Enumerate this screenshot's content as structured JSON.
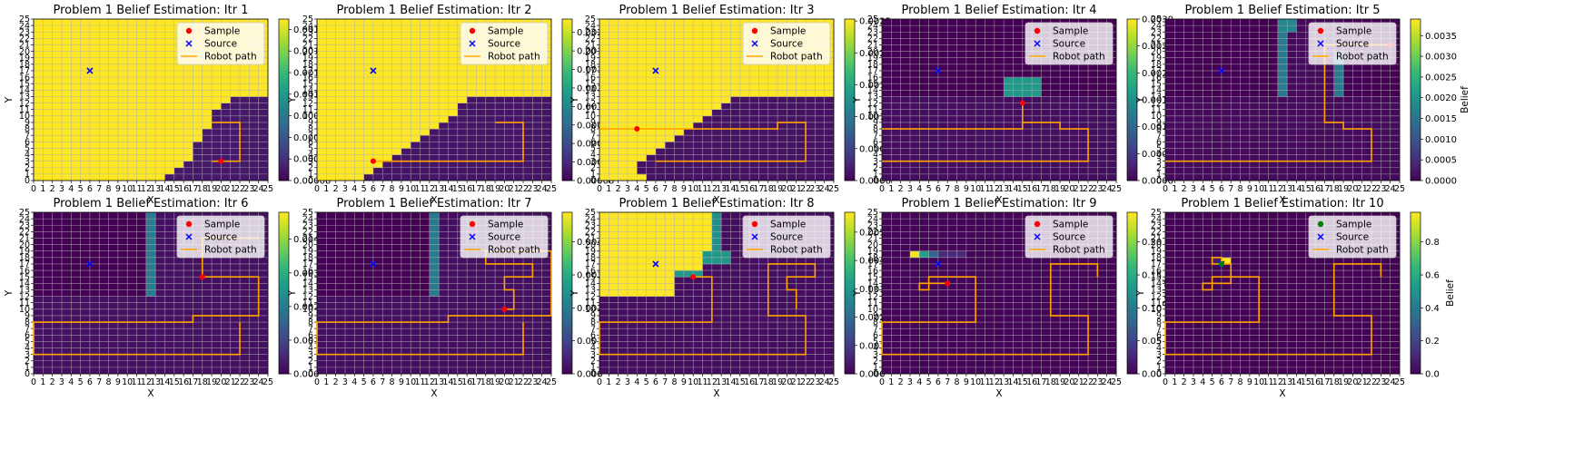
{
  "figure": {
    "panels": [
      {
        "title": "Problem 1 Belief Estimation: Itr 1"
      },
      {
        "title": "Problem 1 Belief Estimation: Itr 2"
      },
      {
        "title": "Problem 1 Belief Estimation: Itr 3"
      },
      {
        "title": "Problem 1 Belief Estimation: Itr 4"
      },
      {
        "title": "Problem 1 Belief Estimation: Itr 5"
      },
      {
        "title": "Problem 1 Belief Estimation: Itr 6"
      },
      {
        "title": "Problem 1 Belief Estimation: Itr 7"
      },
      {
        "title": "Problem 1 Belief Estimation: Itr 8"
      },
      {
        "title": "Problem 1 Belief Estimation: Itr 9"
      },
      {
        "title": "Problem 1 Belief Estimation: Itr 10"
      }
    ],
    "xlabel": "X",
    "ylabel": "Y",
    "colorbar_label": "Belief",
    "legend": {
      "sample": "Sample",
      "source": "Source",
      "path": "Robot path"
    },
    "x_ticks": [
      "0",
      "1",
      "2",
      "3",
      "4",
      "5",
      "6",
      "7",
      "8",
      "9",
      "10",
      "11",
      "12",
      "13",
      "14",
      "15",
      "16",
      "17",
      "18",
      "19",
      "20",
      "21",
      "22",
      "23",
      "24",
      "25"
    ],
    "y_ticks": [
      "0",
      "1",
      "2",
      "3",
      "4",
      "5",
      "6",
      "7",
      "8",
      "9",
      "10",
      "11",
      "12",
      "13",
      "14",
      "15",
      "16",
      "17",
      "18",
      "19",
      "20",
      "21",
      "22",
      "23",
      "24",
      "25"
    ]
  },
  "colors": {
    "viridis": [
      "#440154",
      "#482878",
      "#3e4989",
      "#31688e",
      "#26828e",
      "#1f9e89",
      "#35b779",
      "#6ece58",
      "#b5de2b",
      "#fde725"
    ],
    "sample": "#ff0000",
    "sample_found": "#008000",
    "source": "#0000ff",
    "path": "#ffa500",
    "grid": "#b0b0b0"
  },
  "chart_data": [
    {
      "type": "heatmap",
      "iteration": 1,
      "source": [
        6,
        17
      ],
      "sample": [
        20,
        3
      ],
      "sample_color": "red",
      "cmax": 0.00187,
      "cbar_ticks": [
        "0.00000",
        "0.00025",
        "0.00050",
        "0.00075",
        "0.00100",
        "0.00125",
        "0.00150",
        "0.00175"
      ],
      "path": [
        [
          19,
          3
        ],
        [
          22,
          3
        ],
        [
          22,
          9
        ],
        [
          19,
          9
        ]
      ],
      "regions": [
        {
          "type": "bounds",
          "xs": [
            14,
            15,
            16,
            17,
            17,
            17,
            18,
            18,
            19,
            19,
            19,
            20,
            21
          ],
          "y0": 0,
          "y1": 13,
          "base": 0.00187,
          "inside": 0.00012
        }
      ]
    },
    {
      "type": "heatmap",
      "iteration": 2,
      "source": [
        6,
        17
      ],
      "sample": [
        6,
        3
      ],
      "sample_color": "red",
      "cmax": 0.00218,
      "cbar_ticks": [
        "0.00000",
        "0.00025",
        "0.00050",
        "0.00075",
        "0.00100",
        "0.00125",
        "0.00150",
        "0.00175",
        "0.00200"
      ],
      "path": [
        [
          19,
          9
        ],
        [
          22,
          9
        ],
        [
          22,
          3
        ],
        [
          6,
          3
        ]
      ],
      "regions": [
        {
          "type": "bounds",
          "xs": [
            5,
            6,
            7,
            8,
            9,
            10,
            11,
            12,
            13,
            14,
            15,
            15,
            16,
            17,
            17,
            17,
            18,
            18,
            19,
            19,
            19,
            20,
            21
          ],
          "y0": 0,
          "y1": 13,
          "base": 0.00218,
          "inside": 0.00012
        }
      ]
    },
    {
      "type": "heatmap",
      "iteration": 3,
      "source": [
        6,
        17
      ],
      "sample": [
        4,
        8
      ],
      "sample_color": "red",
      "cmax": 0.00253,
      "cbar_ticks": [
        "0.0000",
        "0.0005",
        "0.0010",
        "0.0015",
        "0.0020",
        "0.0025"
      ],
      "path": [
        [
          6,
          3
        ],
        [
          22,
          3
        ],
        [
          22,
          9
        ],
        [
          19,
          9
        ],
        [
          19,
          8
        ],
        [
          0,
          8
        ]
      ],
      "regions": [
        {
          "type": "bounds",
          "xs": [
            5,
            4,
            4,
            5,
            6,
            7,
            8,
            9,
            10,
            11,
            12,
            13,
            14,
            15,
            15,
            16,
            17,
            17,
            17,
            18,
            18,
            19,
            19,
            19,
            20,
            21
          ],
          "y0": 0,
          "y1": 13,
          "base": 0.00253,
          "inside": 0.00012
        }
      ]
    },
    {
      "type": "heatmap",
      "iteration": 4,
      "source": [
        6,
        17
      ],
      "sample": [
        15,
        12
      ],
      "sample_color": "red",
      "cmax": 0.003,
      "cbar_ticks": [
        "0.0000",
        "0.0005",
        "0.0010",
        "0.0015",
        "0.0020",
        "0.0025",
        "0.0030"
      ],
      "path": [
        [
          0,
          8
        ],
        [
          15,
          8
        ],
        [
          15,
          12
        ],
        [
          15,
          9
        ],
        [
          19,
          9
        ],
        [
          19,
          8
        ],
        [
          22,
          8
        ],
        [
          22,
          3
        ],
        [
          0,
          3
        ]
      ],
      "regions": [
        {
          "type": "rect",
          "x0": 0,
          "x1": 25,
          "y0": 0,
          "y1": 13,
          "v": 0.0001
        },
        {
          "type": "rect",
          "x0": 13,
          "x1": 17,
          "y0": 13,
          "y1": 16,
          "v": 0.0016
        }
      ]
    },
    {
      "type": "heatmap",
      "iteration": 5,
      "source": [
        6,
        17
      ],
      "sample": [
        24,
        21
      ],
      "sample_color": "red",
      "cmax": 0.0039,
      "cbar_ticks": [
        "0.0000",
        "0.0005",
        "0.0010",
        "0.0015",
        "0.0020",
        "0.0025",
        "0.0030",
        "0.0035"
      ],
      "path": [
        [
          0,
          3
        ],
        [
          22,
          3
        ],
        [
          22,
          8
        ],
        [
          19,
          8
        ],
        [
          19,
          9
        ],
        [
          17,
          9
        ],
        [
          17,
          21
        ],
        [
          24,
          21
        ]
      ],
      "regions": [
        {
          "type": "rect",
          "x0": 0,
          "x1": 25,
          "y0": 0,
          "y1": 13,
          "v": 0.0001
        },
        {
          "type": "rect",
          "x0": 12,
          "x1": 19,
          "y0": 13,
          "y1": 25,
          "v": 0.0001
        },
        {
          "type": "rect",
          "x0": 12,
          "x1": 13,
          "y0": 13,
          "y1": 25,
          "v": 0.0016
        },
        {
          "type": "rect",
          "x0": 18,
          "x1": 19,
          "y0": 13,
          "y1": 20,
          "v": 0.0016
        },
        {
          "type": "rect",
          "x0": 12,
          "x1": 14,
          "y0": 23,
          "y1": 25,
          "v": 0.0018
        }
      ]
    },
    {
      "type": "heatmap",
      "iteration": 6,
      "source": [
        6,
        17
      ],
      "sample": [
        18,
        15
      ],
      "sample_color": "red",
      "cmax": 0.0048,
      "cbar_ticks": [
        "0.000",
        "0.001",
        "0.002",
        "0.003",
        "0.004"
      ],
      "path": [
        [
          24,
          21
        ],
        [
          18,
          21
        ],
        [
          18,
          15
        ],
        [
          24,
          15
        ],
        [
          24,
          9
        ],
        [
          17,
          9
        ],
        [
          17,
          8
        ],
        [
          0,
          8
        ],
        [
          0,
          3
        ],
        [
          22,
          3
        ],
        [
          22,
          8
        ]
      ],
      "regions": [
        {
          "type": "rect",
          "x0": 0,
          "x1": 25,
          "y0": 0,
          "y1": 12,
          "v": 0.0002
        },
        {
          "type": "rect",
          "x0": 12,
          "x1": 25,
          "y0": 12,
          "y1": 25,
          "v": 0.0002
        },
        {
          "type": "rect",
          "x0": 12,
          "x1": 13,
          "y0": 12,
          "y1": 25,
          "v": 0.002
        }
      ]
    },
    {
      "type": "heatmap",
      "iteration": 7,
      "source": [
        6,
        17
      ],
      "sample": [
        20,
        10
      ],
      "sample_color": "red",
      "cmax": 0.0049,
      "cbar_ticks": [
        "0.000",
        "0.001",
        "0.002",
        "0.003",
        "0.004"
      ],
      "path": [
        [
          20,
          10
        ],
        [
          21,
          10
        ],
        [
          21,
          13
        ],
        [
          20,
          13
        ],
        [
          20,
          15
        ],
        [
          23,
          15
        ],
        [
          23,
          17
        ],
        [
          18,
          17
        ],
        [
          18,
          19
        ],
        [
          25,
          19
        ],
        [
          25,
          9
        ],
        [
          14,
          9
        ],
        [
          14,
          8
        ],
        [
          0,
          8
        ],
        [
          0,
          3
        ],
        [
          22,
          3
        ],
        [
          22,
          8
        ]
      ],
      "regions": [
        {
          "type": "rect",
          "x0": 0,
          "x1": 25,
          "y0": 0,
          "y1": 12,
          "v": 0.0002
        },
        {
          "type": "rect",
          "x0": 12,
          "x1": 25,
          "y0": 12,
          "y1": 25,
          "v": 0.0002
        },
        {
          "type": "rect",
          "x0": 12,
          "x1": 13,
          "y0": 12,
          "y1": 25,
          "v": 0.002
        }
      ]
    },
    {
      "type": "heatmap",
      "iteration": 8,
      "source": [
        6,
        17
      ],
      "sample": [
        10,
        15
      ],
      "sample_color": "red",
      "cmax": 0.0057,
      "cbar_ticks": [
        "0.000",
        "0.001",
        "0.002",
        "0.003",
        "0.004",
        "0.005"
      ],
      "path": [
        [
          10,
          15
        ],
        [
          12,
          15
        ],
        [
          12,
          8
        ],
        [
          0,
          8
        ],
        [
          0,
          3
        ],
        [
          22,
          3
        ],
        [
          22,
          9
        ],
        [
          18,
          9
        ],
        [
          18,
          17
        ],
        [
          23,
          17
        ],
        [
          23,
          15
        ],
        [
          20,
          15
        ],
        [
          20,
          13
        ],
        [
          21,
          13
        ],
        [
          21,
          10
        ]
      ],
      "regions": [
        {
          "type": "rect",
          "x0": 0,
          "x1": 25,
          "y0": 0,
          "y1": 25,
          "v": 0.0002
        },
        {
          "type": "rect",
          "x0": 0,
          "x1": 8,
          "y0": 12,
          "y1": 25,
          "v": 0.0057
        },
        {
          "type": "rect",
          "x0": 8,
          "x1": 11,
          "y0": 16,
          "y1": 25,
          "v": 0.0057
        },
        {
          "type": "rect",
          "x0": 11,
          "x1": 12,
          "y0": 19,
          "y1": 25,
          "v": 0.0057
        },
        {
          "type": "rect",
          "x0": 8,
          "x1": 11,
          "y0": 15,
          "y1": 16,
          "v": 0.003
        },
        {
          "type": "rect",
          "x0": 11,
          "x1": 14,
          "y0": 17,
          "y1": 19,
          "v": 0.003
        },
        {
          "type": "rect",
          "x0": 12,
          "x1": 13,
          "y0": 19,
          "y1": 25,
          "v": 0.0028
        }
      ]
    },
    {
      "type": "heatmap",
      "iteration": 9,
      "source": [
        6,
        17
      ],
      "sample": [
        7,
        14
      ],
      "sample_color": "red",
      "cmax": 0.245,
      "cbar_ticks": [
        "0.00",
        "0.05",
        "0.10",
        "0.15",
        "0.20"
      ],
      "path": [
        [
          7,
          14
        ],
        [
          5,
          14
        ],
        [
          5,
          13
        ],
        [
          4,
          13
        ],
        [
          4,
          14
        ],
        [
          5,
          14
        ],
        [
          5,
          15
        ],
        [
          10,
          15
        ],
        [
          10,
          8
        ],
        [
          0,
          8
        ],
        [
          0,
          3
        ],
        [
          22,
          3
        ],
        [
          22,
          9
        ],
        [
          18,
          9
        ],
        [
          18,
          17
        ],
        [
          23,
          17
        ],
        [
          23,
          15
        ]
      ],
      "regions": [
        {
          "type": "rect",
          "x0": 0,
          "x1": 25,
          "y0": 0,
          "y1": 25,
          "v": 0.002
        },
        {
          "type": "rect",
          "x0": 3,
          "x1": 4,
          "y0": 18,
          "y1": 19,
          "v": 0.24
        },
        {
          "type": "rect",
          "x0": 4,
          "x1": 5,
          "y0": 18,
          "y1": 19,
          "v": 0.14
        },
        {
          "type": "rect",
          "x0": 5,
          "x1": 6,
          "y0": 18,
          "y1": 19,
          "v": 0.08
        },
        {
          "type": "rect",
          "x0": 6,
          "x1": 9,
          "y0": 18,
          "y1": 19,
          "v": 0.03
        }
      ]
    },
    {
      "type": "heatmap",
      "iteration": 10,
      "source": [
        6,
        17
      ],
      "sample": [
        6,
        17
      ],
      "sample_color": "green",
      "cmax": 0.98,
      "cbar_ticks": [
        "0.0",
        "0.2",
        "0.4",
        "0.6",
        "0.8"
      ],
      "path": [
        [
          6,
          17
        ],
        [
          6,
          18
        ],
        [
          5,
          18
        ],
        [
          5,
          17
        ],
        [
          7,
          17
        ],
        [
          7,
          14
        ],
        [
          5,
          14
        ],
        [
          5,
          13
        ],
        [
          4,
          13
        ],
        [
          4,
          14
        ],
        [
          5,
          14
        ],
        [
          5,
          15
        ],
        [
          10,
          15
        ],
        [
          10,
          8
        ],
        [
          0,
          8
        ],
        [
          0,
          3
        ],
        [
          22,
          3
        ],
        [
          22,
          9
        ],
        [
          18,
          9
        ],
        [
          18,
          17
        ],
        [
          23,
          17
        ],
        [
          23,
          15
        ]
      ],
      "regions": [
        {
          "type": "rect",
          "x0": 0,
          "x1": 25,
          "y0": 0,
          "y1": 25,
          "v": 0.002
        },
        {
          "type": "rect",
          "x0": 6,
          "x1": 7,
          "y0": 17,
          "y1": 18,
          "v": 0.98
        },
        {
          "type": "rect",
          "x0": 5,
          "x1": 6,
          "y0": 17,
          "y1": 18,
          "v": 0.08
        },
        {
          "type": "rect",
          "x0": 6,
          "x1": 7,
          "y0": 18,
          "y1": 19,
          "v": 0.05
        }
      ]
    }
  ]
}
